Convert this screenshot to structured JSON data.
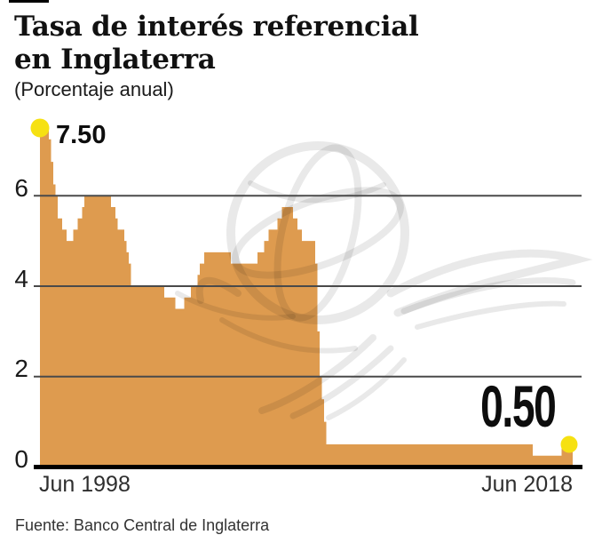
{
  "header": {
    "title": "Tasa de interés referencial\nen Inglaterra",
    "subtitle": "(Porcentaje anual)"
  },
  "footer": {
    "source": "Fuente: Banco Central de Inglaterra"
  },
  "palette": {
    "area": "#DE9B4F",
    "dot": "#F6E112",
    "grid": "#4A4A4A",
    "axis": "#000000",
    "text": "#1A1A1A"
  },
  "chart_data": {
    "type": "area",
    "title": "Tasa de interés referencial en Inglaterra",
    "unit": "Porcentaje anual",
    "x_start_label": "Jun 1998",
    "x_end_label": "Jun 2018",
    "x_axis_months_span": 240,
    "ylim": [
      0,
      7.5
    ],
    "yticks": [
      0,
      2,
      4,
      6
    ],
    "ytick_labels": [
      "0",
      "2",
      "4",
      "6"
    ],
    "grid": "horizontal",
    "legend": "none",
    "start_annotation": {
      "label": "7.50",
      "value": 7.5,
      "x_label": "Jun 1998"
    },
    "end_annotation": {
      "label": "0.50",
      "value": 0.5,
      "x_label": "Jun 2018"
    },
    "steps_format": "[month_offset_from_Jun_1998, rate_percent]; each rate holds until the next step",
    "steps": [
      [
        0,
        7.5
      ],
      [
        4,
        7.25
      ],
      [
        5,
        6.75
      ],
      [
        6,
        6.25
      ],
      [
        7,
        6.0
      ],
      [
        8,
        5.5
      ],
      [
        10,
        5.25
      ],
      [
        12,
        5.0
      ],
      [
        15,
        5.25
      ],
      [
        17,
        5.5
      ],
      [
        19,
        5.75
      ],
      [
        20,
        6.0
      ],
      [
        32,
        5.75
      ],
      [
        34,
        5.5
      ],
      [
        35,
        5.25
      ],
      [
        38,
        5.0
      ],
      [
        39,
        4.75
      ],
      [
        40,
        4.5
      ],
      [
        41,
        4.0
      ],
      [
        56,
        3.75
      ],
      [
        61,
        3.5
      ],
      [
        65,
        3.75
      ],
      [
        68,
        4.0
      ],
      [
        71,
        4.25
      ],
      [
        72,
        4.5
      ],
      [
        74,
        4.75
      ],
      [
        86,
        4.5
      ],
      [
        98,
        4.75
      ],
      [
        101,
        5.0
      ],
      [
        103,
        5.25
      ],
      [
        107,
        5.5
      ],
      [
        109,
        5.75
      ],
      [
        114,
        5.5
      ],
      [
        116,
        5.25
      ],
      [
        118,
        5.0
      ],
      [
        124,
        4.5
      ],
      [
        125,
        3.0
      ],
      [
        126,
        2.0
      ],
      [
        127,
        1.5
      ],
      [
        128,
        1.0
      ],
      [
        129,
        0.5
      ],
      [
        222,
        0.25
      ],
      [
        235,
        0.5
      ]
    ]
  }
}
